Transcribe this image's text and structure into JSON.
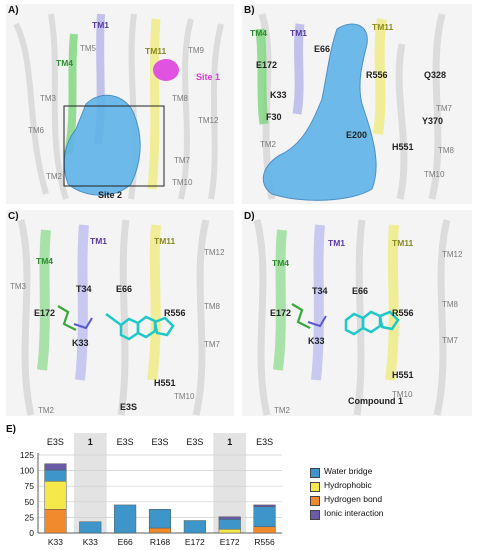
{
  "panels": {
    "A": {
      "label": "A)",
      "helices": [
        "TM1",
        "TM5",
        "TM11",
        "TM9",
        "TM4",
        "TM3",
        "TM8",
        "TM12",
        "TM6",
        "TM2",
        "TM7",
        "TM10"
      ],
      "site1": "Site 1",
      "site2": "Site 2"
    },
    "B": {
      "label": "B)",
      "helices": [
        "TM4",
        "TM1",
        "TM11",
        "TM7",
        "TM2",
        "TM8",
        "TM10"
      ],
      "residues": [
        "E66",
        "E172",
        "R556",
        "Q328",
        "K33",
        "F30",
        "Y370",
        "E200",
        "H551"
      ]
    },
    "C": {
      "label": "C)",
      "helices": [
        "TM1",
        "TM11",
        "TM12",
        "TM4",
        "TM3",
        "TM8",
        "TM7",
        "TM2",
        "TM10"
      ],
      "residues": [
        "T34",
        "E66",
        "E172",
        "R556",
        "K33",
        "H551"
      ],
      "ligand": "E3S"
    },
    "D": {
      "label": "D)",
      "helices": [
        "TM1",
        "TM11",
        "TM12",
        "TM4",
        "TM8",
        "TM7",
        "TM2",
        "TM10"
      ],
      "residues": [
        "T34",
        "E66",
        "E172",
        "R556",
        "K33",
        "H551"
      ],
      "ligand": "Compound 1"
    }
  },
  "chart_data": {
    "panel_label": "E)",
    "type": "bar",
    "stacked": true,
    "categories": [
      "K33",
      "K33",
      "E66",
      "R168",
      "E172",
      "E172",
      "R556"
    ],
    "group_labels": [
      "E3S",
      "1",
      "E3S",
      "E3S",
      "E3S",
      "1",
      "E3S"
    ],
    "shaded_groups": [
      1,
      5
    ],
    "series": [
      {
        "name": "Hydrogen bond",
        "color": "#f08a2c",
        "values": [
          38,
          0,
          0,
          8,
          0,
          0,
          10
        ]
      },
      {
        "name": "Hydrophobic",
        "color": "#f5e84a",
        "values": [
          45,
          0,
          0,
          0,
          0,
          6,
          0
        ]
      },
      {
        "name": "Water bridge",
        "color": "#3d95c9",
        "values": [
          18,
          18,
          45,
          30,
          20,
          16,
          32
        ]
      },
      {
        "name": "Ionic interaction",
        "color": "#6a5aa8",
        "values": [
          10,
          0,
          0,
          0,
          0,
          4,
          3
        ]
      }
    ],
    "legend_order": [
      "Water bridge",
      "Hydrophobic",
      "Hydrogen bond",
      "Ionic interaction"
    ],
    "ylim": [
      0,
      125
    ],
    "yticks": [
      0,
      25,
      50,
      75,
      100,
      125
    ],
    "grid": true,
    "legend_position": "right"
  }
}
